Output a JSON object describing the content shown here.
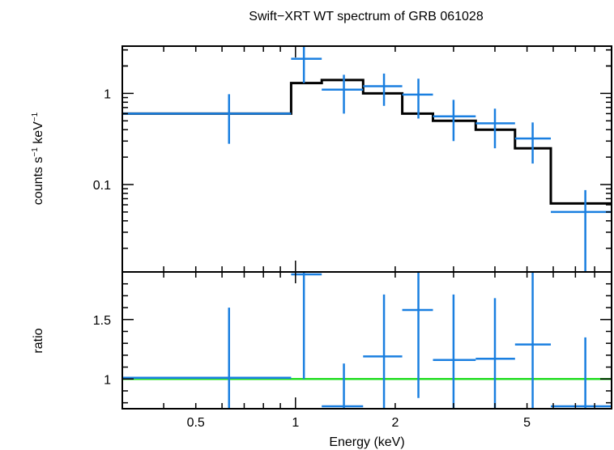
{
  "title": "Swift−XRT WT spectrum of GRB 061028",
  "colors": {
    "data": "#1a7fe0",
    "model": "#000000",
    "unity": "#22dd22",
    "frame": "#000000"
  },
  "chart_data": [
    {
      "type": "scatter",
      "panel": "spectrum",
      "ylabel_main": "counts s",
      "ylabel_sup1": "−1",
      "ylabel_mid": " keV",
      "ylabel_sup2": "−1",
      "xscale": "log",
      "yscale": "log",
      "xlim": [
        0.3,
        9.0
      ],
      "ylim": [
        0.011,
        3.3
      ],
      "ytick_labels": [
        {
          "value": 1,
          "label": "1"
        },
        {
          "value": 0.1,
          "label": "0.1"
        }
      ],
      "series": [
        {
          "kind": "data",
          "points": [
            {
              "xlo": 0.3,
              "xhi": 0.97,
              "x": 0.63,
              "y": 0.6,
              "ylo": 0.28,
              "yhi": 0.98
            },
            {
              "xlo": 0.97,
              "xhi": 1.2,
              "x": 1.06,
              "y": 2.4,
              "ylo": 1.3,
              "yhi": 3.3
            },
            {
              "xlo": 1.2,
              "xhi": 1.6,
              "x": 1.4,
              "y": 1.1,
              "ylo": 0.6,
              "yhi": 1.6
            },
            {
              "xlo": 1.6,
              "xhi": 2.1,
              "x": 1.85,
              "y": 1.2,
              "ylo": 0.73,
              "yhi": 1.65
            },
            {
              "xlo": 2.1,
              "xhi": 2.6,
              "x": 2.35,
              "y": 0.97,
              "ylo": 0.53,
              "yhi": 1.45
            },
            {
              "xlo": 2.6,
              "xhi": 3.5,
              "x": 3.0,
              "y": 0.56,
              "ylo": 0.3,
              "yhi": 0.85
            },
            {
              "xlo": 3.5,
              "xhi": 4.6,
              "x": 4.0,
              "y": 0.47,
              "ylo": 0.25,
              "yhi": 0.68
            },
            {
              "xlo": 4.6,
              "xhi": 5.9,
              "x": 5.2,
              "y": 0.32,
              "ylo": 0.17,
              "yhi": 0.48
            },
            {
              "xlo": 5.9,
              "xhi": 9.0,
              "x": 7.5,
              "y": 0.05,
              "ylo": 0.011,
              "yhi": 0.087
            }
          ]
        },
        {
          "kind": "model",
          "steps": [
            {
              "x0": 0.3,
              "x1": 0.97,
              "y": 0.6
            },
            {
              "x0": 0.97,
              "x1": 1.2,
              "y": 1.3
            },
            {
              "x0": 1.2,
              "x1": 1.6,
              "y": 1.4
            },
            {
              "x0": 1.6,
              "x1": 2.1,
              "y": 1.0
            },
            {
              "x0": 2.1,
              "x1": 2.6,
              "y": 0.6
            },
            {
              "x0": 2.6,
              "x1": 3.5,
              "y": 0.5
            },
            {
              "x0": 3.5,
              "x1": 4.6,
              "y": 0.4
            },
            {
              "x0": 4.6,
              "x1": 5.9,
              "y": 0.25
            },
            {
              "x0": 5.9,
              "x1": 9.0,
              "y": 0.062
            }
          ]
        }
      ]
    },
    {
      "type": "scatter",
      "panel": "ratio",
      "xlabel": "Energy (keV)",
      "ylabel": "ratio",
      "xscale": "log",
      "yscale": "linear",
      "xlim": [
        0.3,
        9.0
      ],
      "ylim": [
        0.75,
        1.9
      ],
      "xtick_labels": [
        {
          "value": 0.5,
          "label": "0.5"
        },
        {
          "value": 1,
          "label": "1"
        },
        {
          "value": 2,
          "label": "2"
        },
        {
          "value": 5,
          "label": "5"
        }
      ],
      "ytick_labels": [
        {
          "value": 1.5,
          "label": "1.5"
        },
        {
          "value": 1,
          "label": "1"
        }
      ],
      "unity_line": 1.0,
      "series": [
        {
          "kind": "data",
          "points": [
            {
              "xlo": 0.3,
              "xhi": 0.97,
              "x": 0.63,
              "y": 1.01,
              "ylo": 0.75,
              "yhi": 1.6
            },
            {
              "xlo": 0.97,
              "xhi": 1.2,
              "x": 1.06,
              "y": 1.88,
              "ylo": 1.0,
              "yhi": 1.9
            },
            {
              "xlo": 1.2,
              "xhi": 1.6,
              "x": 1.4,
              "y": 0.77,
              "ylo": 0.75,
              "yhi": 1.13
            },
            {
              "xlo": 1.6,
              "xhi": 2.1,
              "x": 1.85,
              "y": 1.19,
              "ylo": 0.75,
              "yhi": 1.71
            },
            {
              "xlo": 2.1,
              "xhi": 2.6,
              "x": 2.35,
              "y": 1.58,
              "ylo": 0.84,
              "yhi": 1.9
            },
            {
              "xlo": 2.6,
              "xhi": 3.5,
              "x": 3.0,
              "y": 1.16,
              "ylo": 0.75,
              "yhi": 1.71
            },
            {
              "xlo": 3.5,
              "xhi": 4.6,
              "x": 4.0,
              "y": 1.17,
              "ylo": 0.75,
              "yhi": 1.68
            },
            {
              "xlo": 4.6,
              "xhi": 5.9,
              "x": 5.2,
              "y": 1.29,
              "ylo": 0.75,
              "yhi": 1.9
            },
            {
              "xlo": 5.9,
              "xhi": 9.0,
              "x": 7.5,
              "y": 0.77,
              "ylo": 0.75,
              "yhi": 1.35
            }
          ]
        }
      ]
    }
  ]
}
